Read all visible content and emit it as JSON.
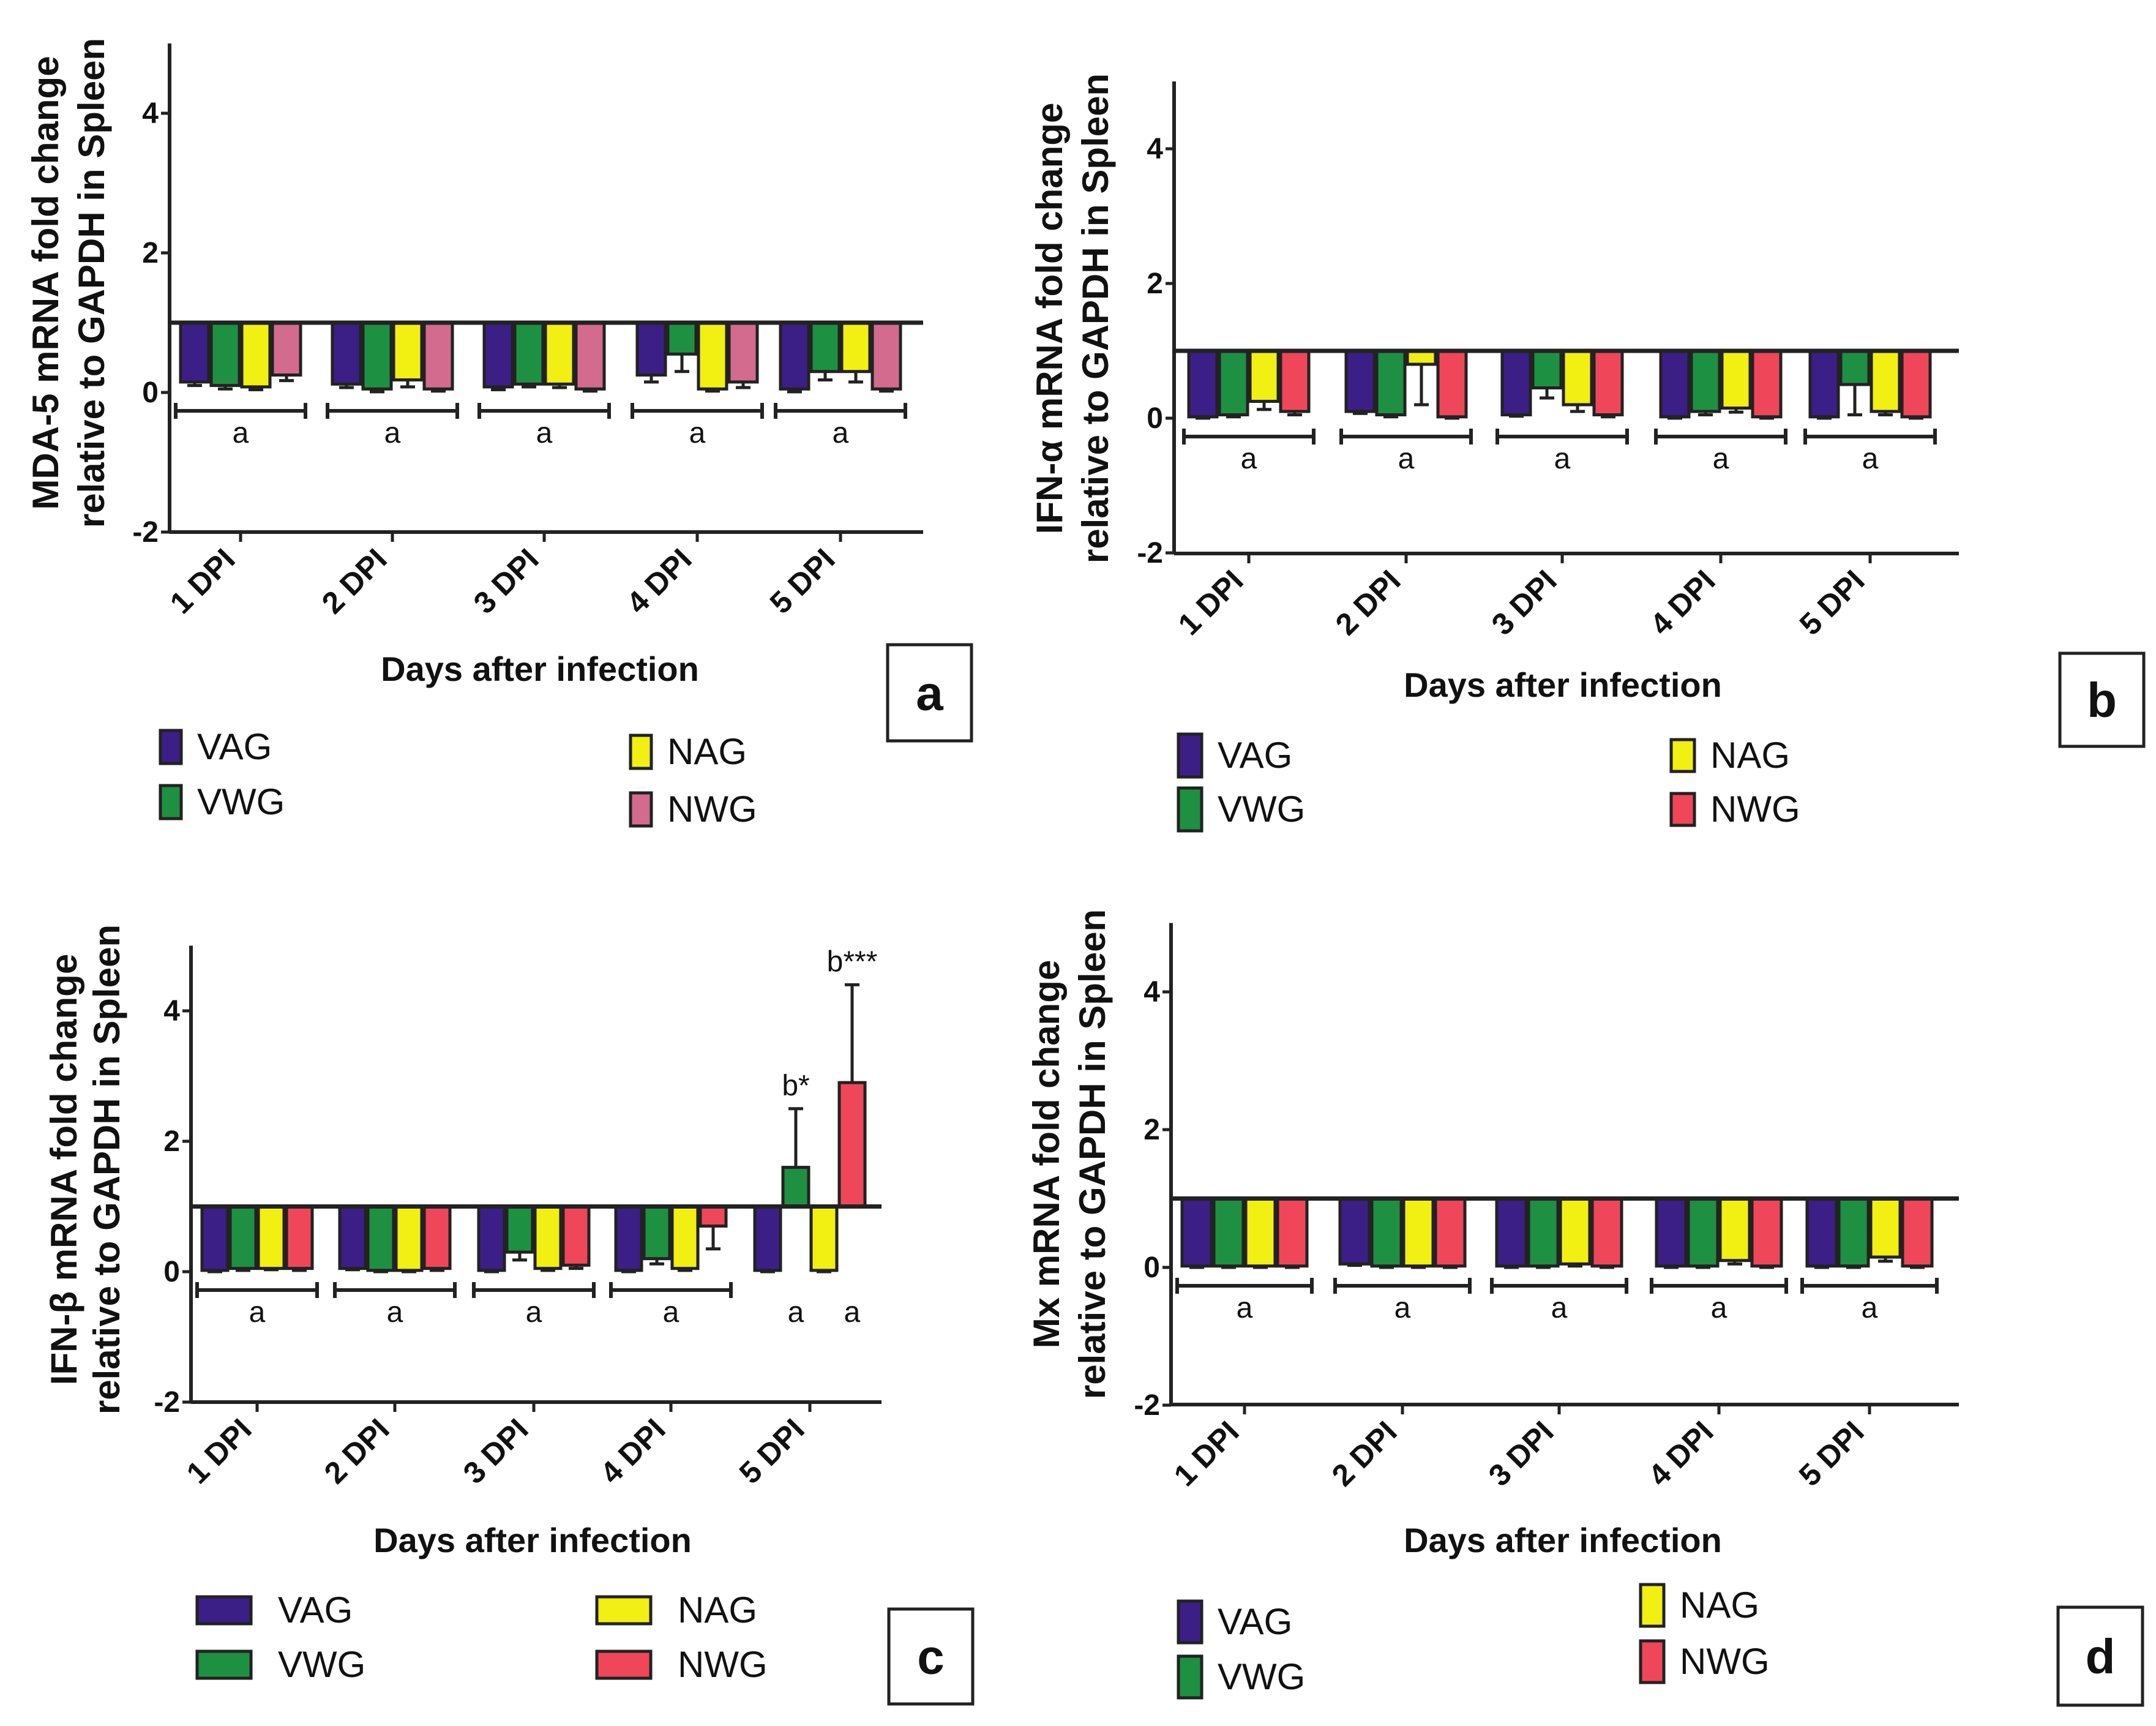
{
  "legend_labels": [
    "VAG",
    "VWG",
    "NAG",
    "NWG"
  ],
  "colors": {
    "VAG": "#3b1f86",
    "VWG": "#1e9041",
    "NAG": "#f2ef13",
    "NWG_a": "#d36b8e",
    "NWG": "#f0465a",
    "frame": "#222222"
  },
  "chart_data": [
    {
      "type": "bar",
      "panel_label": "a",
      "title": "",
      "xlabel": "Days after infection",
      "ylabel": [
        "MDA-5 mRNA fold change",
        "relative to GAPDH in Spleen"
      ],
      "categories": [
        "1 DPI",
        "2 DPI",
        "3 DPI",
        "4 DPI",
        "5 DPI"
      ],
      "ylim": [
        -2,
        5
      ],
      "yticks": [
        -2,
        0,
        2,
        4
      ],
      "baseline": 1,
      "series": [
        {
          "name": "VAG",
          "values": [
            0.15,
            0.12,
            0.08,
            0.25,
            0.05
          ],
          "err": [
            0.05,
            0.05,
            0.04,
            0.1,
            0.04
          ]
        },
        {
          "name": "VWG",
          "values": [
            0.1,
            0.05,
            0.12,
            0.55,
            0.3
          ],
          "err": [
            0.05,
            0.04,
            0.04,
            0.25,
            0.12
          ]
        },
        {
          "name": "NAG",
          "values": [
            0.08,
            0.18,
            0.12,
            0.05,
            0.3
          ],
          "err": [
            0.04,
            0.1,
            0.05,
            0.03,
            0.15
          ]
        },
        {
          "name": "NWG",
          "values": [
            0.25,
            0.05,
            0.05,
            0.15,
            0.05
          ],
          "err": [
            0.08,
            0.03,
            0.03,
            0.08,
            0.03
          ]
        }
      ],
      "groups": [
        {
          "label": "a",
          "cats": [
            0,
            4
          ]
        },
        {
          "label": "a",
          "cats": [
            1,
            4
          ]
        },
        {
          "label": "a",
          "cats": [
            2,
            4
          ]
        },
        {
          "label": "a",
          "cats": [
            3,
            4
          ]
        },
        {
          "label": "a",
          "cats": [
            4,
            4
          ]
        }
      ],
      "annotations": []
    },
    {
      "type": "bar",
      "panel_label": "b",
      "title": "",
      "xlabel": "Days after infection",
      "ylabel": [
        "IFN-α mRNA fold change",
        "relative to GAPDH in Spleen"
      ],
      "categories": [
        "1 DPI",
        "2 DPI",
        "3 DPI",
        "4 DPI",
        "5 DPI"
      ],
      "ylim": [
        -2,
        5
      ],
      "yticks": [
        -2,
        0,
        2,
        4
      ],
      "baseline": 1,
      "series": [
        {
          "name": "VAG",
          "values": [
            0.02,
            0.1,
            0.05,
            0.02,
            0.02
          ],
          "err": [
            0.02,
            0.03,
            0.02,
            0.02,
            0.02
          ]
        },
        {
          "name": "VWG",
          "values": [
            0.05,
            0.05,
            0.45,
            0.1,
            0.5
          ],
          "err": [
            0.03,
            0.03,
            0.15,
            0.05,
            0.45
          ]
        },
        {
          "name": "NAG",
          "values": [
            0.25,
            0.8,
            0.2,
            0.15,
            0.1
          ],
          "err": [
            0.12,
            0.6,
            0.1,
            0.06,
            0.05
          ]
        },
        {
          "name": "NWG",
          "values": [
            0.1,
            0.02,
            0.05,
            0.02,
            0.02
          ],
          "err": [
            0.05,
            0.02,
            0.03,
            0.02,
            0.02
          ]
        }
      ],
      "groups": [
        {
          "label": "a",
          "cats": [
            0,
            4
          ]
        },
        {
          "label": "a",
          "cats": [
            1,
            4
          ]
        },
        {
          "label": "a",
          "cats": [
            2,
            4
          ]
        },
        {
          "label": "a",
          "cats": [
            3,
            4
          ]
        },
        {
          "label": "a",
          "cats": [
            4,
            4
          ]
        }
      ],
      "annotations": []
    },
    {
      "type": "bar",
      "panel_label": "c",
      "title": "",
      "xlabel": "Days after infection",
      "ylabel": [
        "IFN-β mRNA fold change",
        "relative to GAPDH in Spleen"
      ],
      "categories": [
        "1 DPI",
        "2 DPI",
        "3 DPI",
        "4 DPI",
        "5 DPI"
      ],
      "ylim": [
        -2,
        5
      ],
      "yticks": [
        -2,
        0,
        2,
        4
      ],
      "baseline": 1,
      "series": [
        {
          "name": "VAG",
          "values": [
            0.02,
            0.05,
            0.02,
            0.02,
            0.02
          ],
          "err": [
            0.02,
            0.02,
            0.02,
            0.02,
            0.02
          ]
        },
        {
          "name": "VWG",
          "values": [
            0.05,
            0.02,
            0.3,
            0.2,
            1.6
          ],
          "err": [
            0.03,
            0.02,
            0.12,
            0.08,
            0.9
          ]
        },
        {
          "name": "NAG",
          "values": [
            0.05,
            0.02,
            0.05,
            0.05,
            0.02
          ],
          "err": [
            0.02,
            0.02,
            0.03,
            0.03,
            0.02
          ]
        },
        {
          "name": "NWG",
          "values": [
            0.05,
            0.05,
            0.1,
            0.7,
            2.9
          ],
          "err": [
            0.03,
            0.03,
            0.05,
            0.35,
            1.5
          ]
        }
      ],
      "groups": [
        {
          "label": "a",
          "cats": [
            0,
            4
          ]
        },
        {
          "label": "a",
          "cats": [
            1,
            4
          ]
        },
        {
          "label": "a",
          "cats": [
            2,
            4
          ]
        },
        {
          "label": "a",
          "cats": [
            3,
            4
          ]
        },
        {
          "label": "a",
          "cats": [
            4,
            1
          ]
        },
        {
          "label": "a",
          "cats": [
            4,
            3
          ]
        }
      ],
      "annotations": [
        {
          "text": "b*",
          "cat": 4,
          "series": 1
        },
        {
          "text": "b***",
          "cat": 4,
          "series": 3
        }
      ]
    },
    {
      "type": "bar",
      "panel_label": "d",
      "title": "",
      "xlabel": "Days after infection",
      "ylabel": [
        "Mx mRNA fold change",
        "relative to GAPDH in Spleen"
      ],
      "categories": [
        "1 DPI",
        "2 DPI",
        "3 DPI",
        "4 DPI",
        "5 DPI"
      ],
      "ylim": [
        -2,
        5
      ],
      "yticks": [
        -2,
        0,
        2,
        4
      ],
      "baseline": 1,
      "series": [
        {
          "name": "VAG",
          "values": [
            0.02,
            0.05,
            0.02,
            0.02,
            0.02
          ],
          "err": [
            0.02,
            0.02,
            0.02,
            0.02,
            0.02
          ]
        },
        {
          "name": "VWG",
          "values": [
            0.02,
            0.02,
            0.02,
            0.02,
            0.02
          ],
          "err": [
            0.02,
            0.02,
            0.02,
            0.02,
            0.02
          ]
        },
        {
          "name": "NAG",
          "values": [
            0.02,
            0.02,
            0.05,
            0.1,
            0.15
          ],
          "err": [
            0.02,
            0.02,
            0.03,
            0.05,
            0.06
          ]
        },
        {
          "name": "NWG",
          "values": [
            0.02,
            0.02,
            0.02,
            0.02,
            0.02
          ],
          "err": [
            0.02,
            0.02,
            0.02,
            0.02,
            0.02
          ]
        }
      ],
      "groups": [
        {
          "label": "a",
          "cats": [
            0,
            4
          ]
        },
        {
          "label": "a",
          "cats": [
            1,
            4
          ]
        },
        {
          "label": "a",
          "cats": [
            2,
            4
          ]
        },
        {
          "label": "a",
          "cats": [
            3,
            4
          ]
        },
        {
          "label": "a",
          "cats": [
            4,
            4
          ]
        }
      ],
      "annotations": []
    }
  ]
}
